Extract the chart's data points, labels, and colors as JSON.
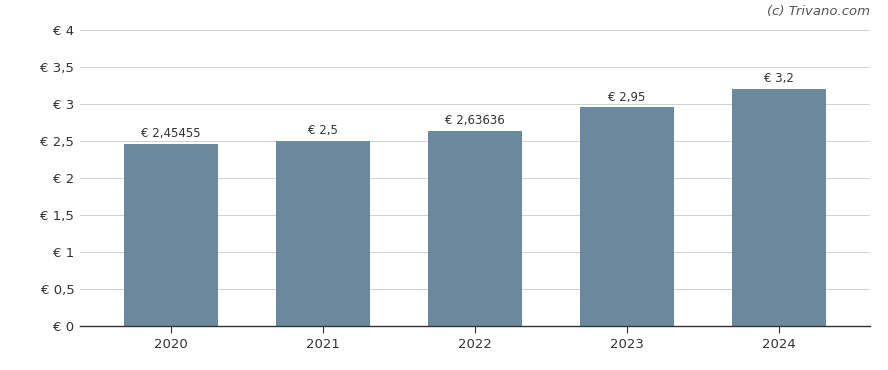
{
  "categories": [
    "2020",
    "2021",
    "2022",
    "2023",
    "2024"
  ],
  "values": [
    2.45455,
    2.5,
    2.63636,
    2.95,
    3.2
  ],
  "labels": [
    "€ 2,45455",
    "€ 2,5",
    "€ 2,63636",
    "€ 2,95",
    "€ 3,2"
  ],
  "bar_color": "#6b8a9e",
  "background_color": "#ffffff",
  "ylim": [
    0,
    4
  ],
  "yticks": [
    0,
    0.5,
    1.0,
    1.5,
    2.0,
    2.5,
    3.0,
    3.5,
    4.0
  ],
  "ytick_labels": [
    "€ 0",
    "€ 0,5",
    "€ 1",
    "€ 1,5",
    "€ 2",
    "€ 2,5",
    "€ 3",
    "€ 3,5",
    "€ 4"
  ],
  "watermark": "(c) Trivano.com",
  "bar_width": 0.62,
  "label_fontsize": 8.5,
  "tick_fontsize": 9.5,
  "watermark_fontsize": 9.5
}
